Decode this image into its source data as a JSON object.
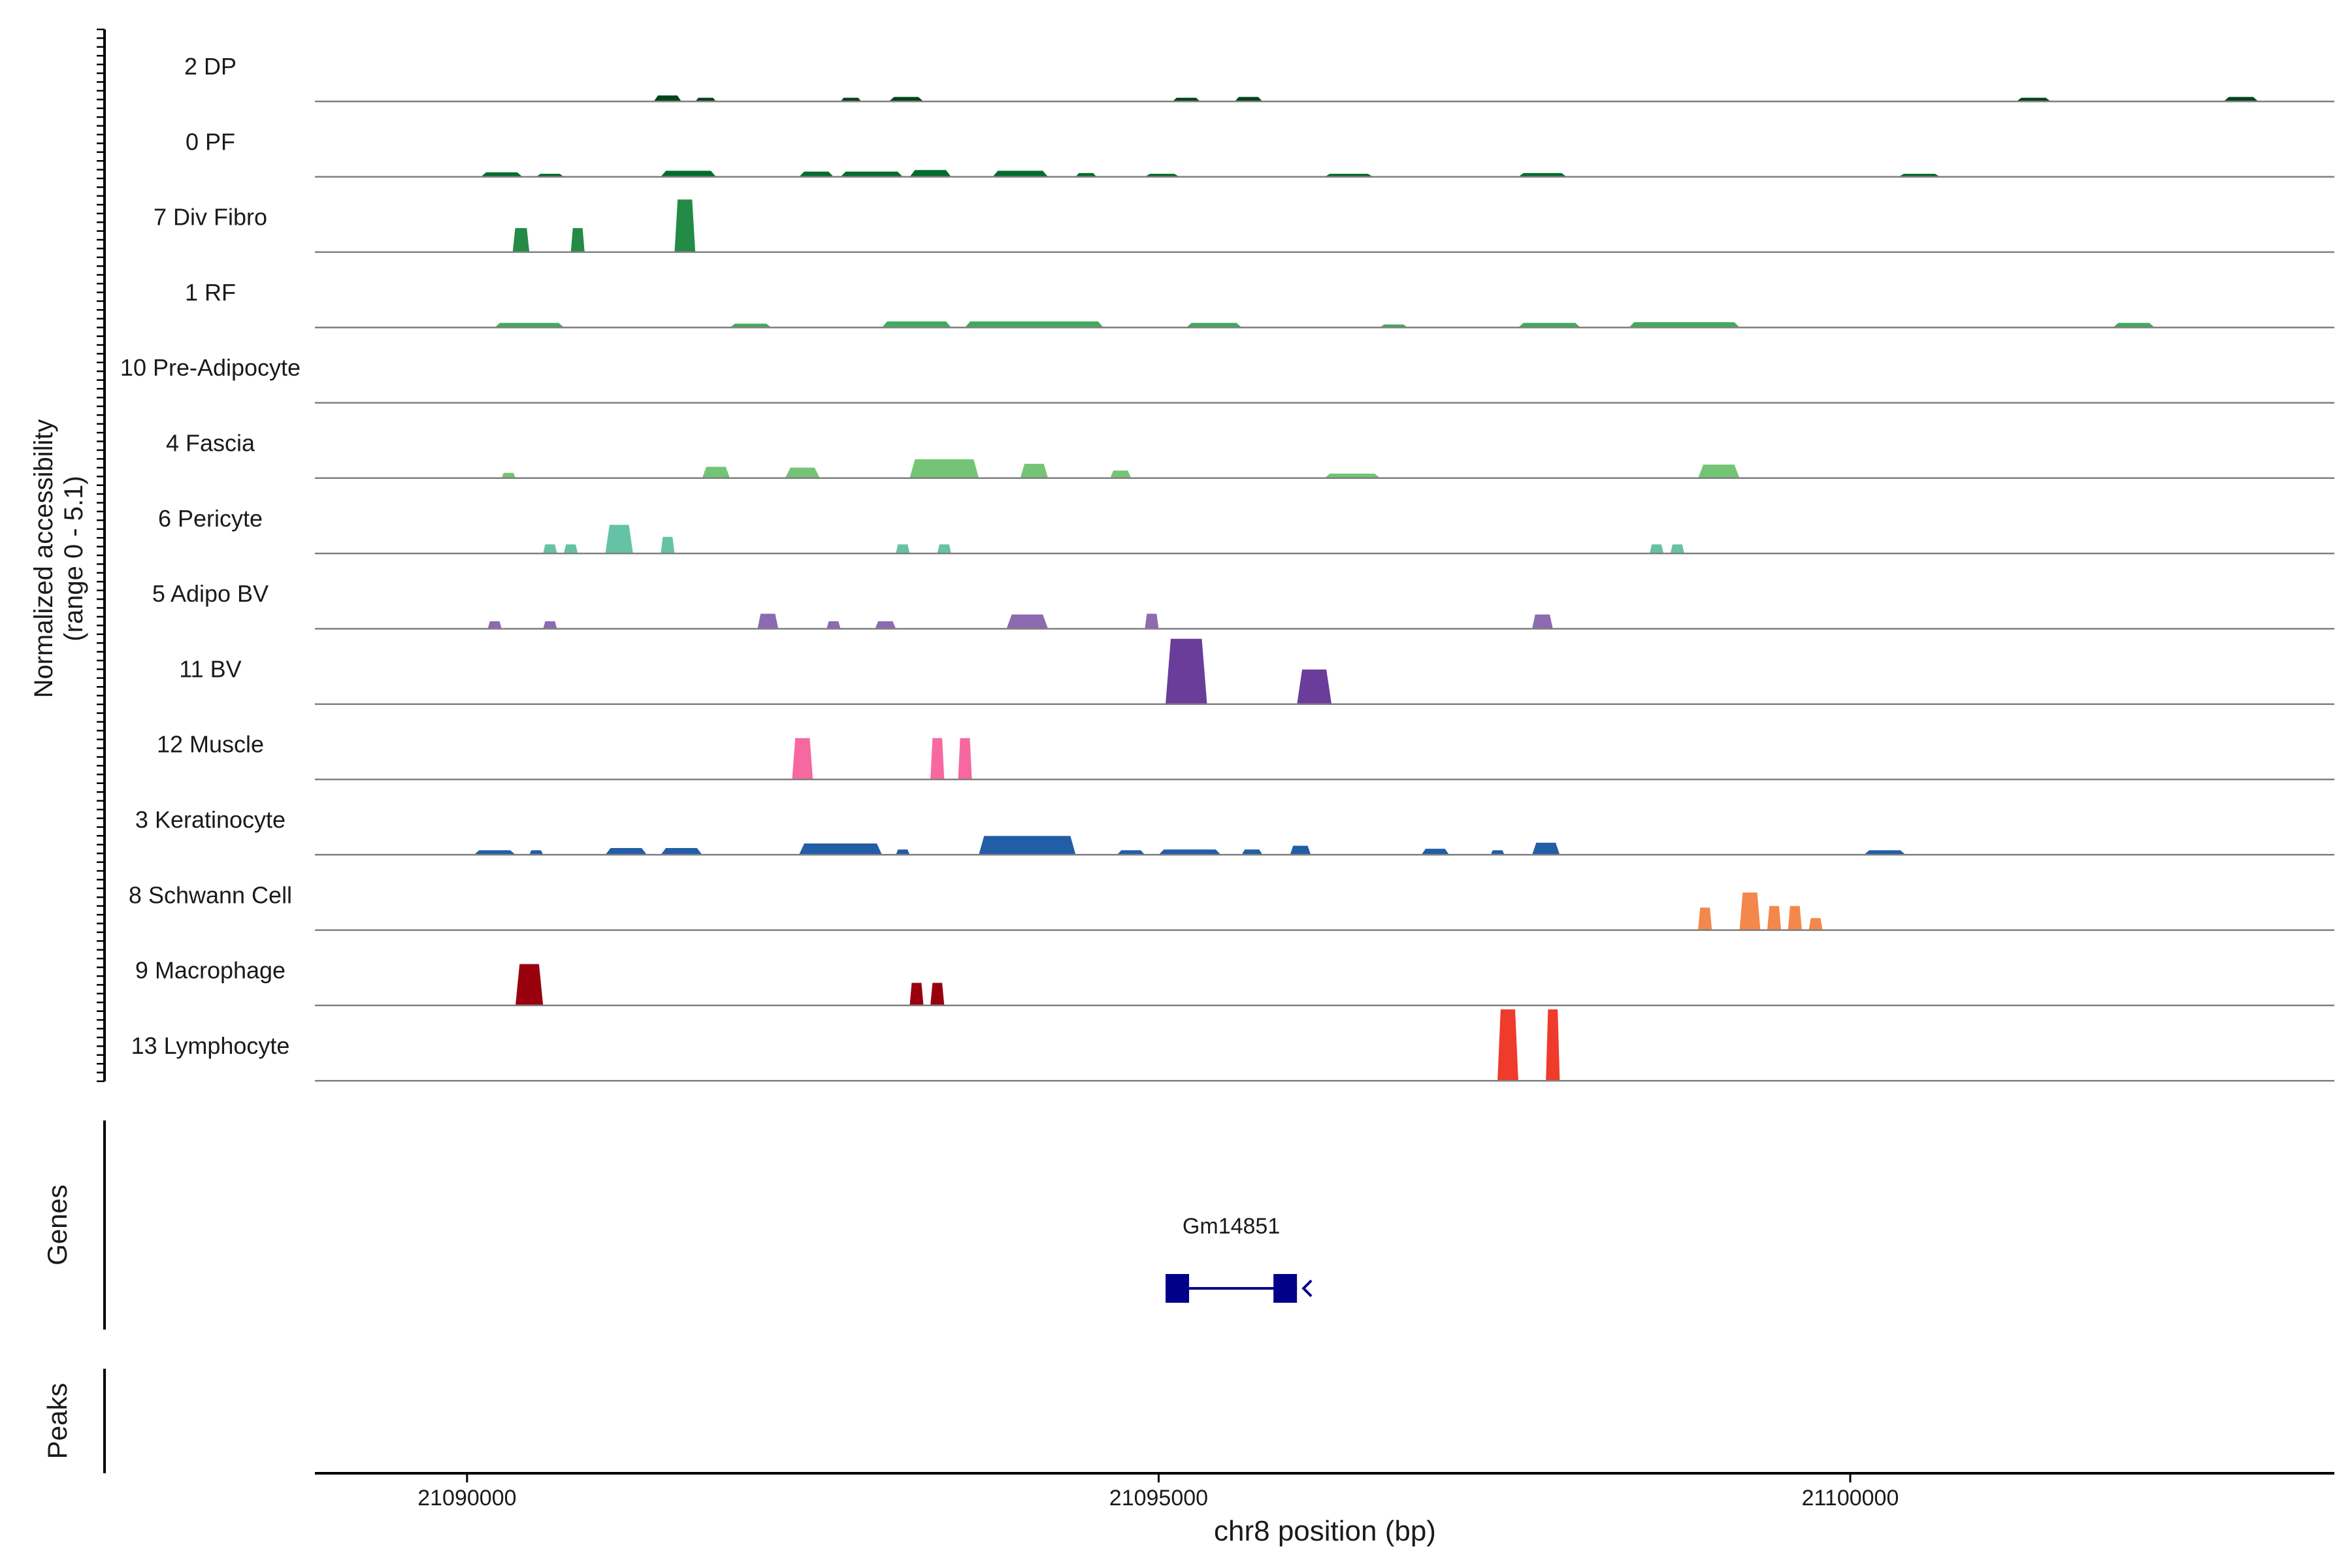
{
  "chart_data": {
    "type": "area",
    "subtype": "coverage_tracks",
    "ylabel_lines": [
      "Normalized accessibility",
      "(range 0 - 5.1)"
    ],
    "xlabel": "chr8 position (bp)",
    "xlim": [
      21088900,
      21103500
    ],
    "xticks": [
      21090000,
      21095000,
      21100000
    ],
    "ylim": [
      0,
      5.1
    ],
    "grid": false,
    "tracks": [
      {
        "label": "2 DP",
        "color": "#00441b",
        "peaks": [
          [
            21091350,
            21091550,
            0.08
          ],
          [
            21091650,
            21091800,
            0.05
          ],
          [
            21092700,
            21092850,
            0.05
          ],
          [
            21093050,
            21093300,
            0.06
          ],
          [
            21095100,
            21095300,
            0.05
          ],
          [
            21095550,
            21095750,
            0.06
          ],
          [
            21101200,
            21101450,
            0.05
          ],
          [
            21102700,
            21102950,
            0.06
          ]
        ]
      },
      {
        "label": "0 PF",
        "color": "#006d2c",
        "peaks": [
          [
            21090100,
            21090400,
            0.06
          ],
          [
            21090500,
            21090700,
            0.04
          ],
          [
            21091400,
            21091800,
            0.08
          ],
          [
            21092400,
            21092650,
            0.07
          ],
          [
            21092700,
            21093150,
            0.07
          ],
          [
            21093200,
            21093500,
            0.09
          ],
          [
            21093800,
            21094200,
            0.08
          ],
          [
            21094400,
            21094550,
            0.05
          ],
          [
            21094900,
            21095150,
            0.04
          ],
          [
            21096200,
            21096550,
            0.04
          ],
          [
            21097600,
            21097950,
            0.05
          ],
          [
            21100350,
            21100650,
            0.04
          ]
        ]
      },
      {
        "label": "7 Div Fibro",
        "color": "#238b45",
        "peaks": [
          [
            21090330,
            21090450,
            0.32
          ],
          [
            21090750,
            21090850,
            0.32
          ],
          [
            21091500,
            21091650,
            0.7
          ]
        ]
      },
      {
        "label": "1 RF",
        "color": "#41ab5d",
        "peaks": [
          [
            21090200,
            21090700,
            0.06
          ],
          [
            21091900,
            21092200,
            0.05
          ],
          [
            21093000,
            21093500,
            0.08
          ],
          [
            21093600,
            21094600,
            0.08
          ],
          [
            21095200,
            21095600,
            0.06
          ],
          [
            21096600,
            21096800,
            0.04
          ],
          [
            21097600,
            21098050,
            0.06
          ],
          [
            21098400,
            21099200,
            0.07
          ],
          [
            21101900,
            21102200,
            0.06
          ]
        ]
      },
      {
        "label": "10 Pre-Adipocyte",
        "color": "#74c476",
        "peaks": []
      },
      {
        "label": "4 Fascia",
        "color": "#74c476",
        "peaks": [
          [
            21090250,
            21090350,
            0.07
          ],
          [
            21091700,
            21091900,
            0.15
          ],
          [
            21092300,
            21092550,
            0.14
          ],
          [
            21093200,
            21093700,
            0.25
          ],
          [
            21094000,
            21094200,
            0.19
          ],
          [
            21094650,
            21094800,
            0.1
          ],
          [
            21096200,
            21096600,
            0.06
          ],
          [
            21098900,
            21099200,
            0.18
          ]
        ]
      },
      {
        "label": "6 Pericyte",
        "color": "#66c2a4",
        "peaks": [
          [
            21090550,
            21090650,
            0.12
          ],
          [
            21090700,
            21090800,
            0.12
          ],
          [
            21091000,
            21091200,
            0.38
          ],
          [
            21091400,
            21091500,
            0.22
          ],
          [
            21093100,
            21093200,
            0.12
          ],
          [
            21093400,
            21093500,
            0.12
          ],
          [
            21098550,
            21098650,
            0.12
          ],
          [
            21098700,
            21098800,
            0.12
          ]
        ]
      },
      {
        "label": "5 Adipo BV",
        "color": "#8c6bb1",
        "peaks": [
          [
            21090150,
            21090250,
            0.1
          ],
          [
            21090550,
            21090650,
            0.1
          ],
          [
            21092100,
            21092250,
            0.2
          ],
          [
            21092600,
            21092700,
            0.1
          ],
          [
            21092950,
            21093100,
            0.1
          ],
          [
            21093900,
            21094200,
            0.19
          ],
          [
            21094900,
            21095000,
            0.2
          ],
          [
            21097700,
            21097850,
            0.19
          ]
        ]
      },
      {
        "label": "11 BV",
        "color": "#6a3d9a",
        "peaks": [
          [
            21095050,
            21095350,
            0.87
          ],
          [
            21096000,
            21096250,
            0.46
          ]
        ]
      },
      {
        "label": "12 Muscle",
        "color": "#f768a1",
        "peaks": [
          [
            21092350,
            21092500,
            0.55
          ],
          [
            21093350,
            21093450,
            0.55
          ],
          [
            21093550,
            21093650,
            0.55
          ]
        ]
      },
      {
        "label": "3 Keratinocyte",
        "color": "#225ea8",
        "peaks": [
          [
            21090050,
            21090350,
            0.06
          ],
          [
            21090450,
            21090550,
            0.06
          ],
          [
            21091000,
            21091300,
            0.09
          ],
          [
            21091400,
            21091700,
            0.09
          ],
          [
            21092400,
            21093000,
            0.15
          ],
          [
            21093100,
            21093200,
            0.07
          ],
          [
            21093700,
            21094400,
            0.25
          ],
          [
            21094700,
            21094900,
            0.06
          ],
          [
            21095000,
            21095450,
            0.07
          ],
          [
            21095600,
            21095750,
            0.07
          ],
          [
            21095950,
            21096100,
            0.12
          ],
          [
            21096900,
            21097100,
            0.08
          ],
          [
            21097400,
            21097500,
            0.06
          ],
          [
            21097700,
            21097900,
            0.16
          ],
          [
            21100100,
            21100400,
            0.06
          ]
        ]
      },
      {
        "label": "8 Schwann Cell",
        "color": "#f4874b",
        "peaks": [
          [
            21098900,
            21099000,
            0.3
          ],
          [
            21099200,
            21099350,
            0.5
          ],
          [
            21099400,
            21099500,
            0.32
          ],
          [
            21099550,
            21099650,
            0.32
          ],
          [
            21099700,
            21099800,
            0.16
          ]
        ]
      },
      {
        "label": "9 Macrophage",
        "color": "#99000d",
        "peaks": [
          [
            21090350,
            21090550,
            0.55
          ],
          [
            21093200,
            21093300,
            0.3
          ],
          [
            21093350,
            21093450,
            0.3
          ]
        ]
      },
      {
        "label": "13 Lymphocyte",
        "color": "#ef3b2c",
        "peaks": [
          [
            21097450,
            21097600,
            0.95
          ],
          [
            21097800,
            21097900,
            0.95
          ]
        ]
      }
    ],
    "genes_track": {
      "label": "Genes",
      "genes": [
        {
          "name": "Gm14851",
          "start": 21095050,
          "end": 21096000,
          "strand": "-",
          "exons": [
            [
              21095050,
              21095220
            ],
            [
              21095830,
              21096000
            ]
          ],
          "color": "#00008b"
        }
      ]
    },
    "peaks_track": {
      "label": "Peaks",
      "regions": []
    }
  }
}
